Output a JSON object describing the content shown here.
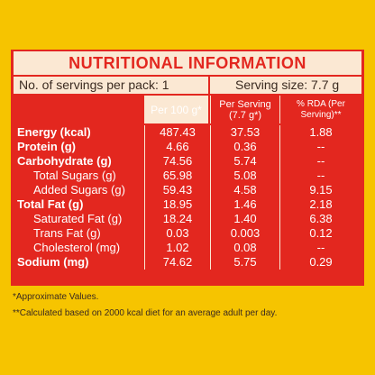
{
  "header": {
    "title": "NUTRITIONAL INFORMATION"
  },
  "servings": {
    "left": "No. of servings per pack: 1",
    "right": "Serving size: 7.7 g"
  },
  "table": {
    "columns": [
      "Per 100 g*",
      "Per Serving (7.7 g*)",
      "% RDA (Per Serving)**"
    ],
    "rows": [
      [
        "Energy (kcal)",
        "487.43",
        "37.53",
        "1.88"
      ],
      [
        "Protein (g)",
        "4.66",
        "0.36",
        "--"
      ],
      [
        "Carbohydrate (g)",
        "74.56",
        "5.74",
        "--"
      ],
      [
        "Total Sugars (g)",
        "65.98",
        "5.08",
        "--"
      ],
      [
        "Added Sugars (g)",
        "59.43",
        "4.58",
        "9.15"
      ],
      [
        "Total Fat (g)",
        "18.95",
        "1.46",
        "2.18"
      ],
      [
        "Saturated Fat (g)",
        "18.24",
        "1.40",
        "6.38"
      ],
      [
        "Trans Fat (g)",
        "0.03",
        "0.003",
        "0.12"
      ],
      [
        "Cholesterol (mg)",
        "1.02",
        "0.08",
        "--"
      ],
      [
        "Sodium (mg)",
        "74.62",
        "5.75",
        "0.29"
      ]
    ]
  },
  "footnotes": [
    "*Approximate Values.",
    "**Calculated based on 2000 kcal diet for an average adult per day."
  ]
}
